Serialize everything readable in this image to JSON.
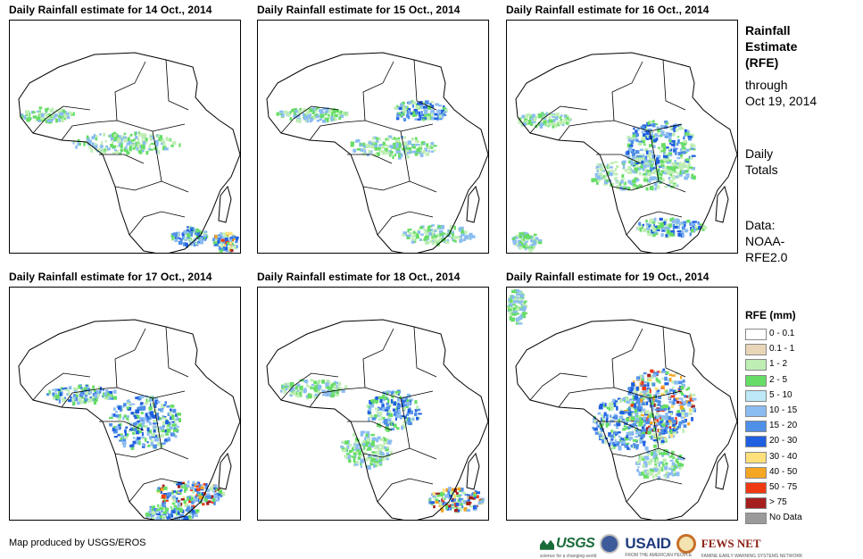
{
  "panels": [
    {
      "title": "Daily Rainfall estimate for 14 Oct., 2014"
    },
    {
      "title": "Daily Rainfall estimate for 15 Oct., 2014"
    },
    {
      "title": "Daily Rainfall estimate for 16 Oct., 2014"
    },
    {
      "title": "Daily Rainfall estimate for 17 Oct., 2014"
    },
    {
      "title": "Daily Rainfall estimate for 18 Oct., 2014"
    },
    {
      "title": "Daily Rainfall estimate for 19 Oct., 2014"
    }
  ],
  "side": {
    "heading_lines": [
      "Rainfall",
      "Estimate",
      "(RFE)"
    ],
    "period_lines": [
      "through",
      "Oct 19, 2014"
    ],
    "totals_lines": [
      "Daily",
      "Totals"
    ],
    "source_lines": [
      "Data:",
      "NOAA-",
      "RFE2.0"
    ]
  },
  "legend": {
    "title": "RFE (mm)",
    "items": [
      {
        "label": "0 - 0.1",
        "color": "#ffffff"
      },
      {
        "label": "0.1 - 1",
        "color": "#e9d6b8"
      },
      {
        "label": "1 - 2",
        "color": "#bfeeb4"
      },
      {
        "label": "2 - 5",
        "color": "#66dd66"
      },
      {
        "label": "5 - 10",
        "color": "#bde9f7"
      },
      {
        "label": "10 - 15",
        "color": "#8bbcf2"
      },
      {
        "label": "15 - 20",
        "color": "#4f8fe8"
      },
      {
        "label": "20 - 30",
        "color": "#1f5fe0"
      },
      {
        "label": "30 - 40",
        "color": "#ffe07a"
      },
      {
        "label": "40 - 50",
        "color": "#f5a623"
      },
      {
        "label": "50 - 75",
        "color": "#f03a12"
      },
      {
        "label": "> 75",
        "color": "#a51f1f"
      },
      {
        "label": "No Data",
        "color": "#9a9a9a"
      }
    ]
  },
  "footer": {
    "credit": "Map produced by USGS/EROS",
    "logos": {
      "usgs": "USGS",
      "usaid": "USAID",
      "fews": "FEWS NET",
      "usgs_tagline": "science for a changing world",
      "usaid_tagline": "FROM THE AMERICAN PEOPLE",
      "fews_tagline": "FAMINE EARLY WARNING SYSTEMS NETWORK"
    }
  }
}
